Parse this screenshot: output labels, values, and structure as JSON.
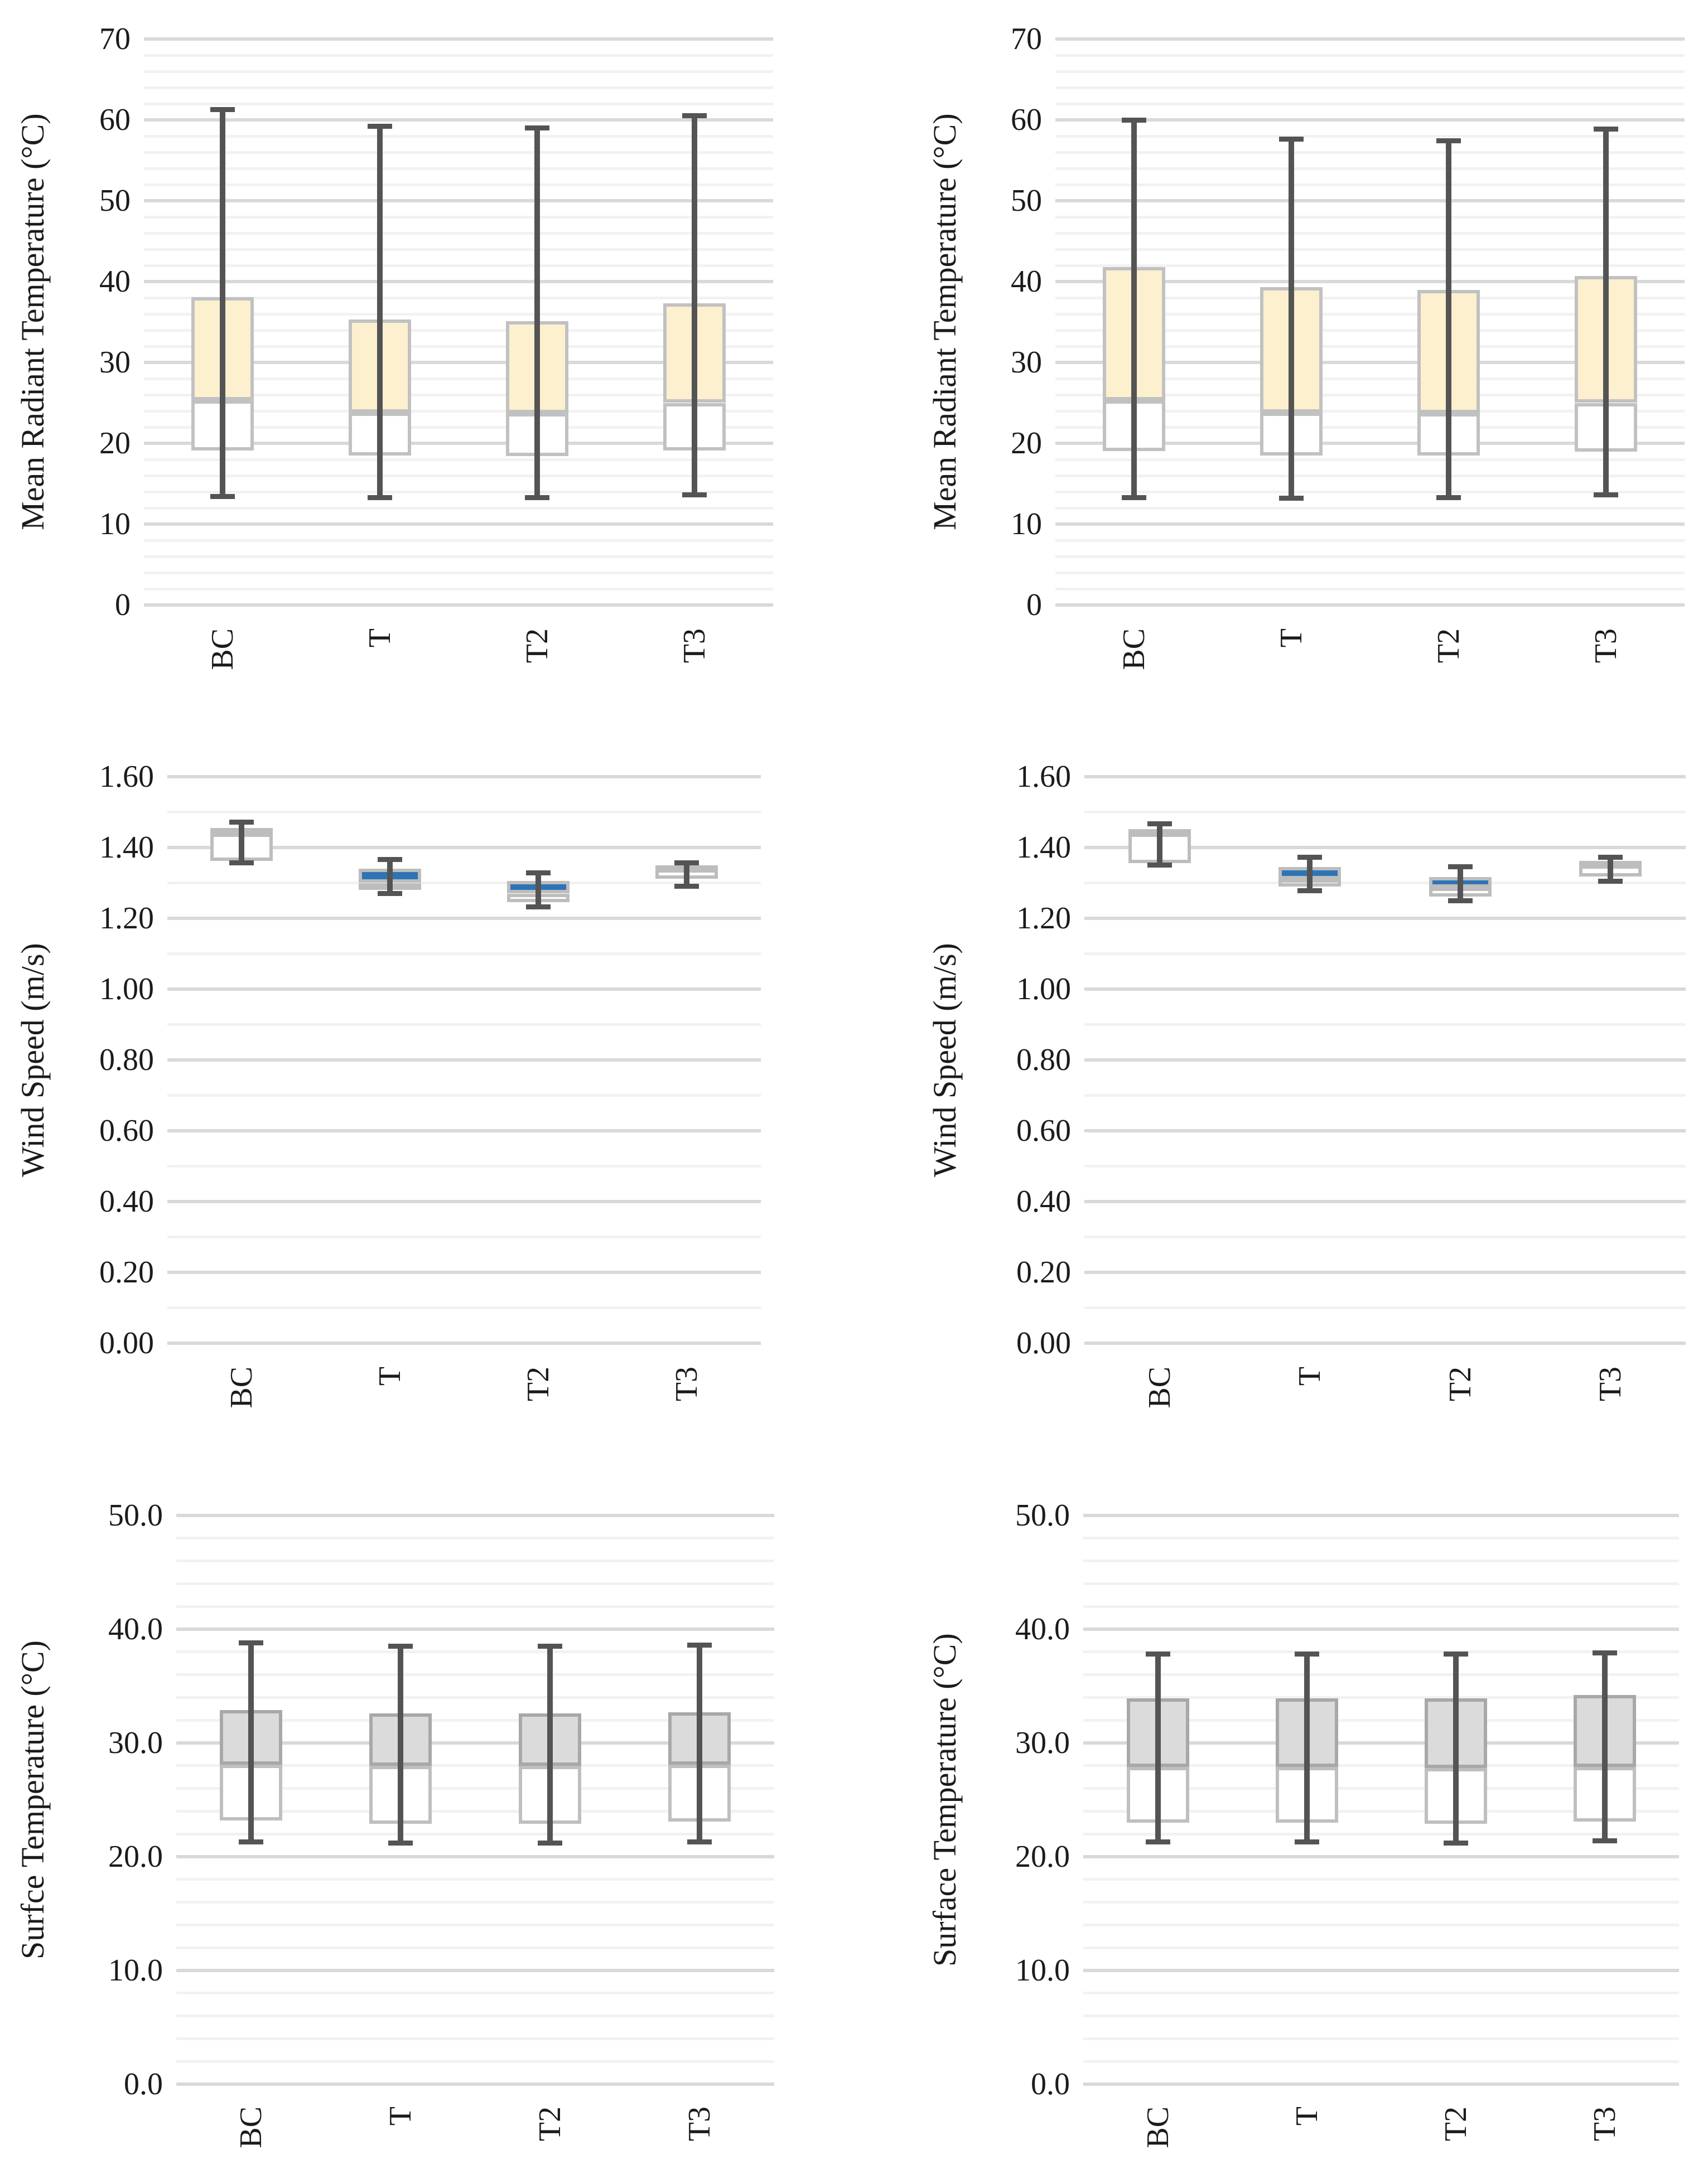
{
  "figure": {
    "description": "Six box-and-whisker charts comparing scenarios BC, T, T2 and T3 for mean radiant temperature, wind speed and surface temperature (left and right study cases)"
  },
  "styles": {
    "background": "#FFFFFF",
    "text_color": "#1B1B1B",
    "grid_major": "#D9D9D9",
    "grid_minor": "#F2F2F2",
    "whisker_color": "#545454",
    "mrt_fill": "#FCF0CF",
    "wind_fill": "#2E74B5",
    "surface_fill": "#DBDBDB",
    "lower_fill": "#FFFFFF",
    "border_light": "#BFBFBF",
    "border_dark": "#A8A8A8"
  },
  "chart_data": [
    {
      "id": "mrt-left",
      "type": "box",
      "position": "top-left",
      "ylabel": "Mean Radiant Temperature (°C)",
      "ymin": 0,
      "ymax": 70,
      "ymajor": 10,
      "yminor": 2,
      "yticks": [
        "0",
        "10",
        "20",
        "30",
        "40",
        "50",
        "60",
        "70"
      ],
      "categories": [
        "BC",
        "T",
        "T2",
        "T3"
      ],
      "upper_fill": "#FCF0CF",
      "lower_fill": "#FFFFFF",
      "upper_border": "#C1C1C1",
      "lower_border": "#C1C1C1",
      "series": [
        {
          "category": "BC",
          "min": 13.4,
          "q1": 19.1,
          "median": 25.3,
          "q3": 38.1,
          "max": 61.3
        },
        {
          "category": "T",
          "min": 13.3,
          "q1": 18.5,
          "median": 23.8,
          "q3": 35.3,
          "max": 59.2
        },
        {
          "category": "T2",
          "min": 13.3,
          "q1": 18.4,
          "median": 23.7,
          "q3": 35.1,
          "max": 59.0
        },
        {
          "category": "T3",
          "min": 13.6,
          "q1": 19.1,
          "median": 25.0,
          "q3": 37.3,
          "max": 60.5
        }
      ]
    },
    {
      "id": "mrt-right",
      "type": "box",
      "position": "top-right",
      "ylabel": "Mean Radiant Temperature (°C)",
      "ymin": 0,
      "ymax": 70,
      "ymajor": 10,
      "yminor": 2,
      "yticks": [
        "0",
        "10",
        "20",
        "30",
        "40",
        "50",
        "60",
        "70"
      ],
      "categories": [
        "BC",
        "T",
        "T2",
        "T3"
      ],
      "upper_fill": "#FCF0CF",
      "lower_fill": "#FFFFFF",
      "upper_border": "#C1C1C1",
      "lower_border": "#C1C1C1",
      "series": [
        {
          "category": "BC",
          "min": 13.3,
          "q1": 19.0,
          "median": 25.3,
          "q3": 41.8,
          "max": 60.0
        },
        {
          "category": "T",
          "min": 13.2,
          "q1": 18.5,
          "median": 23.8,
          "q3": 39.3,
          "max": 57.6
        },
        {
          "category": "T2",
          "min": 13.3,
          "q1": 18.5,
          "median": 23.7,
          "q3": 39.0,
          "max": 57.4
        },
        {
          "category": "T3",
          "min": 13.6,
          "q1": 19.0,
          "median": 25.0,
          "q3": 40.7,
          "max": 58.9
        }
      ]
    },
    {
      "id": "wind-left",
      "type": "box",
      "position": "middle-left",
      "ylabel": "Wind Speed (m/s)",
      "ymin": 0,
      "ymax": 1.6,
      "ymajor": 0.2,
      "yminor": 0.1,
      "yticks": [
        "0.00",
        "0.20",
        "0.40",
        "0.60",
        "0.80",
        "1.00",
        "1.20",
        "1.40",
        "1.60"
      ],
      "categories": [
        "BC",
        "T",
        "T2",
        "T3"
      ],
      "upper_fill": "#2E74B5",
      "lower_fill": "#FFFFFF",
      "upper_border": "#BDBDBD",
      "lower_border": "#BDBDBD",
      "series": [
        {
          "category": "BC",
          "min": 1.356,
          "q1": 1.362,
          "median": 1.44,
          "q3": 1.455,
          "max": 1.471
        },
        {
          "category": "T",
          "min": 1.27,
          "q1": 1.284,
          "median": 1.3,
          "q3": 1.34,
          "max": 1.366
        },
        {
          "category": "T2",
          "min": 1.232,
          "q1": 1.246,
          "median": 1.27,
          "q3": 1.305,
          "max": 1.328
        },
        {
          "category": "T3",
          "min": 1.29,
          "q1": 1.312,
          "median": 1.338,
          "q3": 1.35,
          "max": 1.357
        }
      ]
    },
    {
      "id": "wind-right",
      "type": "box",
      "position": "middle-right",
      "ylabel": "Wind Speed (m/s)",
      "ymin": 0,
      "ymax": 1.6,
      "ymajor": 0.2,
      "yminor": 0.1,
      "yticks": [
        "0.00",
        "0.20",
        "0.40",
        "0.60",
        "0.80",
        "1.00",
        "1.20",
        "1.40",
        "1.60"
      ],
      "categories": [
        "BC",
        "T",
        "T2",
        "T3"
      ],
      "upper_fill": "#2E74B5",
      "lower_fill": "#FFFFFF",
      "upper_border": "#BDBDBD",
      "lower_border": "#BDBDBD",
      "series": [
        {
          "category": "BC",
          "min": 1.35,
          "q1": 1.356,
          "median": 1.44,
          "q3": 1.452,
          "max": 1.467
        },
        {
          "category": "T",
          "min": 1.278,
          "q1": 1.29,
          "median": 1.31,
          "q3": 1.345,
          "max": 1.372
        },
        {
          "category": "T2",
          "min": 1.25,
          "q1": 1.262,
          "median": 1.287,
          "q3": 1.316,
          "max": 1.345
        },
        {
          "category": "T3",
          "min": 1.305,
          "q1": 1.318,
          "median": 1.35,
          "q3": 1.362,
          "max": 1.372
        }
      ]
    },
    {
      "id": "surface-left",
      "type": "box",
      "position": "bottom-left",
      "ylabel": "Surfce Temperature (°C)",
      "ymin": 0,
      "ymax": 50,
      "ymajor": 10,
      "yminor": 2,
      "yticks": [
        "0.0",
        "10.0",
        "20.0",
        "30.0",
        "40.0",
        "50.0"
      ],
      "categories": [
        "BC",
        "T",
        "T2",
        "T3"
      ],
      "upper_fill": "#DBDBDB",
      "lower_fill": "#FFFFFF",
      "upper_border": "#A8A8A8",
      "lower_border": "#BFBFBF",
      "series": [
        {
          "category": "BC",
          "min": 21.3,
          "q1": 23.2,
          "median": 28.1,
          "q3": 32.9,
          "max": 38.8
        },
        {
          "category": "T",
          "min": 21.2,
          "q1": 22.9,
          "median": 28.0,
          "q3": 32.6,
          "max": 38.5
        },
        {
          "category": "T2",
          "min": 21.2,
          "q1": 22.9,
          "median": 28.0,
          "q3": 32.6,
          "max": 38.5
        },
        {
          "category": "T3",
          "min": 21.3,
          "q1": 23.1,
          "median": 28.1,
          "q3": 32.7,
          "max": 38.6
        }
      ]
    },
    {
      "id": "surface-right",
      "type": "box",
      "position": "bottom-right",
      "ylabel": "Surface Temperature (°C)",
      "ymin": 0,
      "ymax": 50,
      "ymajor": 10,
      "yminor": 2,
      "yticks": [
        "0.0",
        "10.0",
        "20.0",
        "30.0",
        "40.0",
        "50.0"
      ],
      "categories": [
        "BC",
        "T",
        "T2",
        "T3"
      ],
      "upper_fill": "#DBDBDB",
      "lower_fill": "#FFFFFF",
      "upper_border": "#A8A8A8",
      "lower_border": "#BFBFBF",
      "series": [
        {
          "category": "BC",
          "min": 21.3,
          "q1": 23.0,
          "median": 27.9,
          "q3": 33.9,
          "max": 37.8
        },
        {
          "category": "T",
          "min": 21.3,
          "q1": 23.0,
          "median": 27.9,
          "q3": 33.9,
          "max": 37.8
        },
        {
          "category": "T2",
          "min": 21.2,
          "q1": 22.9,
          "median": 27.8,
          "q3": 33.9,
          "max": 37.8
        },
        {
          "category": "T3",
          "min": 21.4,
          "q1": 23.1,
          "median": 27.9,
          "q3": 34.2,
          "max": 37.9
        }
      ]
    }
  ]
}
